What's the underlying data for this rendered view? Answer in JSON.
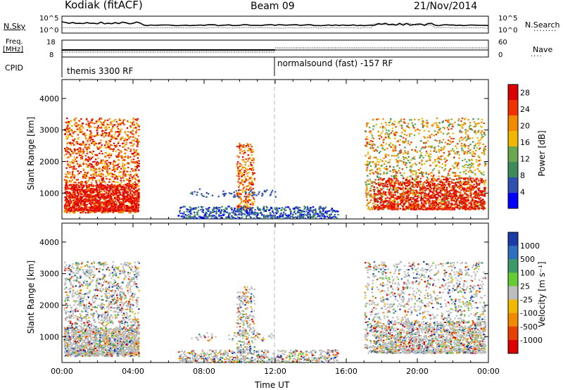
{
  "header": {
    "station": "Kodiak (fitACF)",
    "beam": "Beam 09",
    "date": "21/Nov/2014"
  },
  "strips": {
    "nsky_label": "N.Sky",
    "nsky_ticks": [
      "10^5",
      "10^0"
    ],
    "nsearch_label": "N.Search",
    "nsearch_ticks": [
      "10^5",
      "10^0"
    ],
    "freq_label_1": "Freq.",
    "freq_label_2": "[MHz]",
    "freq_ticks": [
      "18",
      "8"
    ],
    "nave_label": "Nave",
    "nave_ticks": [
      "60",
      "0"
    ],
    "cpid_label": "CPID",
    "cpid_segments": [
      {
        "name": "themis 3300 RF",
        "start_hour": 0
      },
      {
        "name": "normalsound (fast) -157 RF",
        "start_hour": 12
      }
    ]
  },
  "chart_data": [
    {
      "type": "heatmap",
      "panel": "power",
      "xlabel": "Time UT",
      "ylabel": "Slant Range [km]",
      "x_ticks": [
        "00:00",
        "04:00",
        "08:00",
        "12:00",
        "16:00",
        "20:00",
        "00:00"
      ],
      "x_range_hours": [
        0,
        24
      ],
      "y_ticks": [
        1000,
        2000,
        3000,
        4000
      ],
      "y_range_km": [
        180,
        4600
      ],
      "colorbar_label": "Power [dB]",
      "colorbar_ticks": [
        4,
        8,
        12,
        16,
        20,
        24,
        28
      ],
      "colorbar_range": [
        0,
        30
      ],
      "colors": [
        "#0000ff",
        "#3050b0",
        "#3d8a5a",
        "#6aa84f",
        "#f0b800",
        "#f08a00",
        "#ee3300",
        "#dd0000"
      ]
    },
    {
      "type": "heatmap",
      "panel": "velocity",
      "xlabel": "Time UT",
      "ylabel": "Slant Range [km]",
      "x_ticks": [
        "00:00",
        "04:00",
        "08:00",
        "12:00",
        "16:00",
        "20:00",
        "00:00"
      ],
      "x_range_hours": [
        0,
        24
      ],
      "y_ticks": [
        1000,
        2000,
        3000,
        4000
      ],
      "y_range_km": [
        180,
        4600
      ],
      "colorbar_label": "Velocity [m s⁻¹]",
      "colorbar_ticks": [
        "1000",
        "500",
        "100",
        "25",
        "-25",
        "-100",
        "-500",
        "-1000"
      ],
      "colors": [
        "#1a3aa8",
        "#2e6fc0",
        "#3c9a68",
        "#66cc33",
        "#bdbdbd",
        "#f0b800",
        "#f08a00",
        "#e84000",
        "#dd0000"
      ],
      "ground_scatter_color": "#bdbdbd"
    }
  ]
}
